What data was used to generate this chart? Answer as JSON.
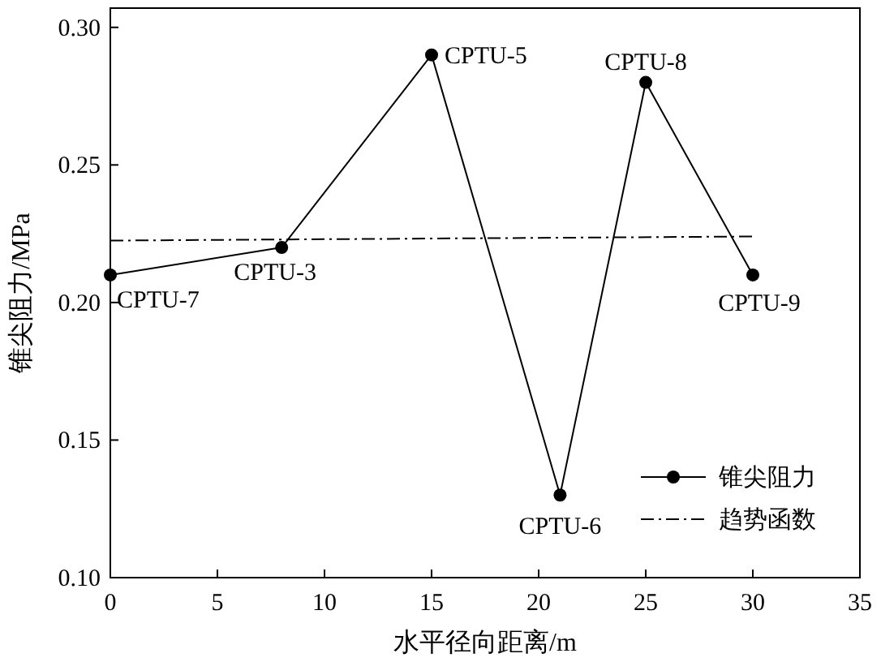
{
  "chart_data": {
    "type": "line",
    "xlabel": "水平径向距离/m",
    "ylabel": "锥尖阻力/MPa",
    "xlim": [
      0,
      35
    ],
    "xticks": [
      0,
      5,
      10,
      15,
      20,
      25,
      30,
      35
    ],
    "ylim": [
      0.1,
      0.307
    ],
    "yticks": [
      {
        "value": 0.1,
        "label": "0.10"
      },
      0.15,
      {
        "value": 0.2,
        "label": "0.20"
      },
      0.25,
      {
        "value": 0.3,
        "label": "0.30"
      }
    ],
    "series": [
      {
        "name": "锥尖阻力",
        "color": "#000000",
        "x": [
          0,
          8,
          15,
          21,
          25,
          30
        ],
        "values": [
          0.21,
          0.22,
          0.29,
          0.13,
          0.28,
          0.21
        ],
        "marker": "circle",
        "line_style": "solid"
      },
      {
        "name": "趋势函数",
        "color": "#000000",
        "x": [
          0,
          30
        ],
        "values": [
          0.2225,
          0.224
        ],
        "marker": "none",
        "line_style": "dashdot"
      }
    ],
    "annotations": [
      {
        "text": "CPTU-7",
        "x": 0,
        "y": 0.21
      },
      {
        "text": "CPTU-3",
        "x": 8,
        "y": 0.22
      },
      {
        "text": "CPTU-5",
        "x": 15,
        "y": 0.29
      },
      {
        "text": "CPTU-6",
        "x": 21,
        "y": 0.13
      },
      {
        "text": "CPTU-8",
        "x": 25,
        "y": 0.28
      },
      {
        "text": "CPTU-9",
        "x": 30,
        "y": 0.21
      }
    ],
    "grid": false,
    "legend": "bottom right"
  }
}
